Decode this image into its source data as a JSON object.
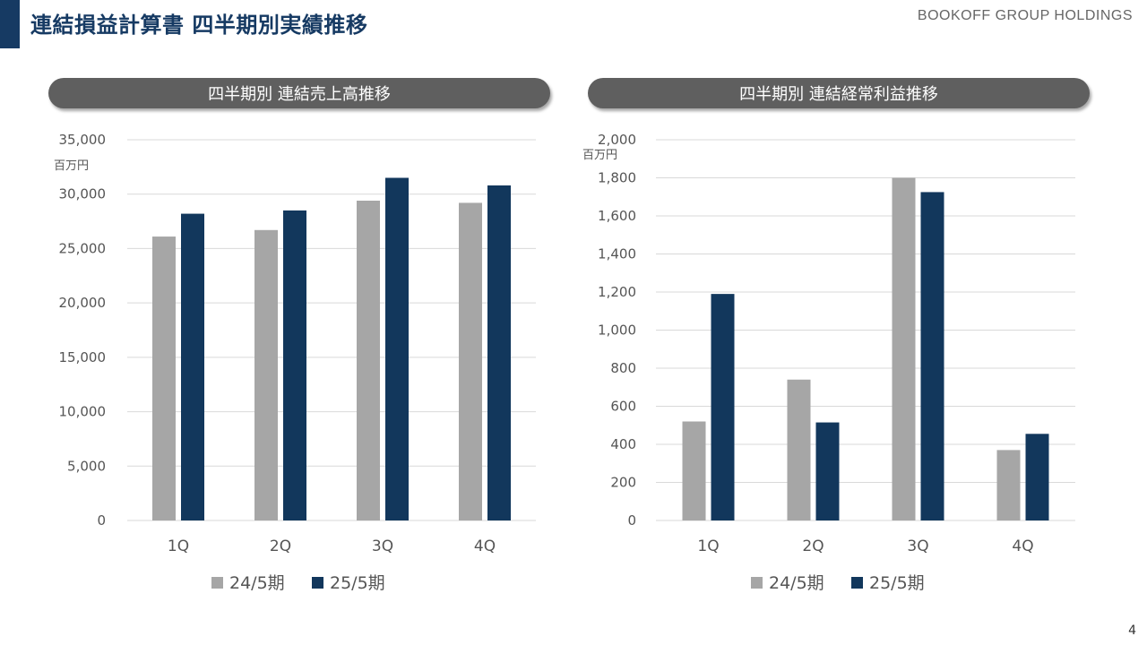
{
  "header": {
    "title": "連結損益計算書 四半期別実績推移",
    "brand": "BOOKOFF GROUP HOLDINGS",
    "page_number": "4"
  },
  "colors": {
    "series_prev": "#a6a6a6",
    "series_curr": "#12375c",
    "accent": "#163a63"
  },
  "chart_data": [
    {
      "type": "bar",
      "title": "四半期別 連結売上高推移",
      "unit_label": "百万円",
      "categories": [
        "1Q",
        "2Q",
        "3Q",
        "4Q"
      ],
      "series": [
        {
          "name": "24/5期",
          "values": [
            26100,
            26700,
            29400,
            29200
          ]
        },
        {
          "name": "25/5期",
          "values": [
            28200,
            28500,
            31500,
            30800
          ]
        }
      ],
      "ylim": [
        0,
        35000
      ],
      "yticks": [
        "0",
        "5,000",
        "10,000",
        "15,000",
        "20,000",
        "25,000",
        "30,000",
        "35,000"
      ],
      "grid": true,
      "legend": "bottom"
    },
    {
      "type": "bar",
      "title": "四半期別 連結経常利益推移",
      "unit_label": "百万円",
      "categories": [
        "1Q",
        "2Q",
        "3Q",
        "4Q"
      ],
      "series": [
        {
          "name": "24/5期",
          "values": [
            520,
            740,
            1800,
            370
          ]
        },
        {
          "name": "25/5期",
          "values": [
            1190,
            515,
            1725,
            455
          ]
        }
      ],
      "ylim": [
        0,
        2000
      ],
      "yticks": [
        "0",
        "200",
        "400",
        "600",
        "800",
        "1,000",
        "1,200",
        "1,400",
        "1,600",
        "1,800",
        "2,000"
      ],
      "grid": true,
      "legend": "bottom"
    }
  ]
}
